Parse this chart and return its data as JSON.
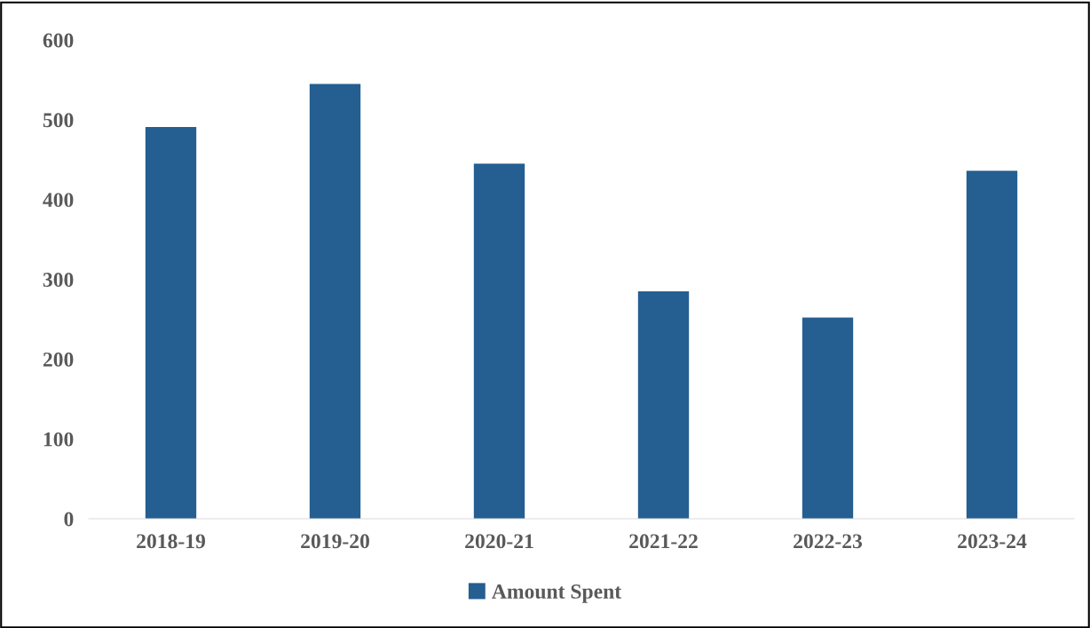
{
  "chart_data": {
    "type": "bar",
    "categories": [
      "2018-19",
      "2019-20",
      "2020-21",
      "2021-22",
      "2022-23",
      "2023-24"
    ],
    "series": [
      {
        "name": "Amount Spent",
        "color": "#255e91",
        "values": [
          491,
          545,
          445,
          285,
          252,
          436
        ]
      }
    ],
    "ylim": [
      0,
      600
    ],
    "yticks": [
      0,
      100,
      200,
      300,
      400,
      500,
      600
    ],
    "grid": false,
    "legend": "bottom"
  }
}
